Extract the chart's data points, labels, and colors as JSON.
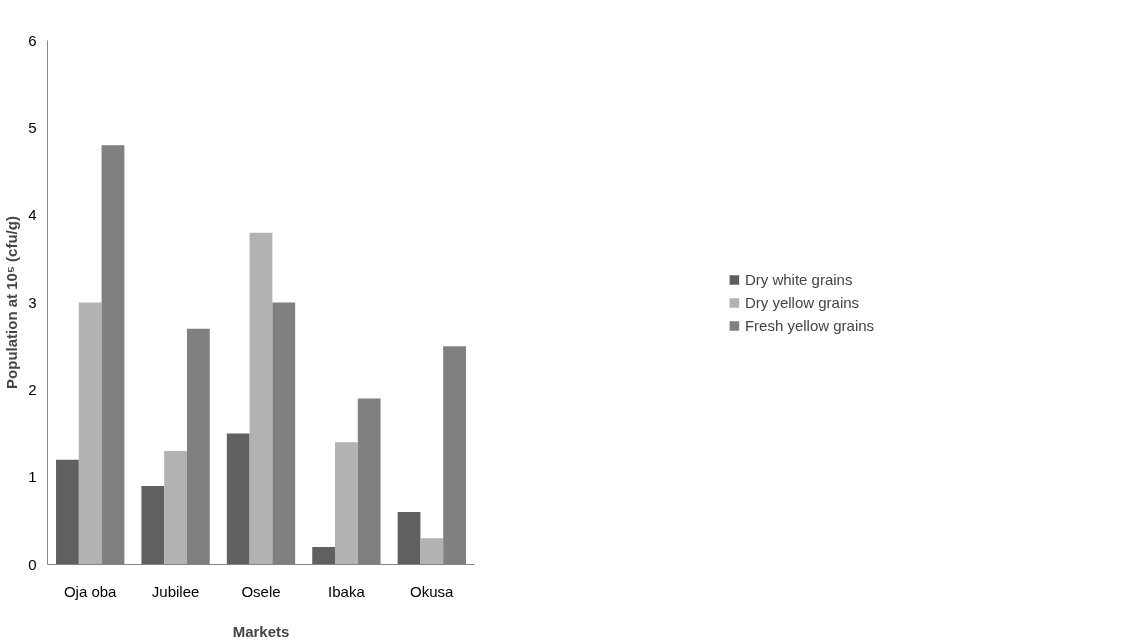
{
  "chart_data": {
    "type": "bar",
    "xlabel": "Markets",
    "ylabel": "Population at 10⁵ (cfu/g)",
    "categories": [
      "Oja oba",
      "Jubilee",
      "Osele",
      "Ibaka",
      "Okusa"
    ],
    "series": [
      {
        "name": "Dry white grains",
        "color": "#606060",
        "values": [
          1.2,
          0.9,
          1.5,
          0.2,
          0.6
        ]
      },
      {
        "name": "Dry yellow grains",
        "color": "#b2b2b2",
        "values": [
          3.0,
          1.3,
          3.8,
          1.4,
          0.3
        ]
      },
      {
        "name": "Fresh yellow grains",
        "color": "#808080",
        "values": [
          4.8,
          2.7,
          3.0,
          1.9,
          2.5
        ]
      }
    ],
    "ylim": [
      0,
      6
    ],
    "yticks": [
      0,
      1,
      2,
      3,
      4,
      5,
      6
    ],
    "grid": false,
    "legend": "right"
  }
}
